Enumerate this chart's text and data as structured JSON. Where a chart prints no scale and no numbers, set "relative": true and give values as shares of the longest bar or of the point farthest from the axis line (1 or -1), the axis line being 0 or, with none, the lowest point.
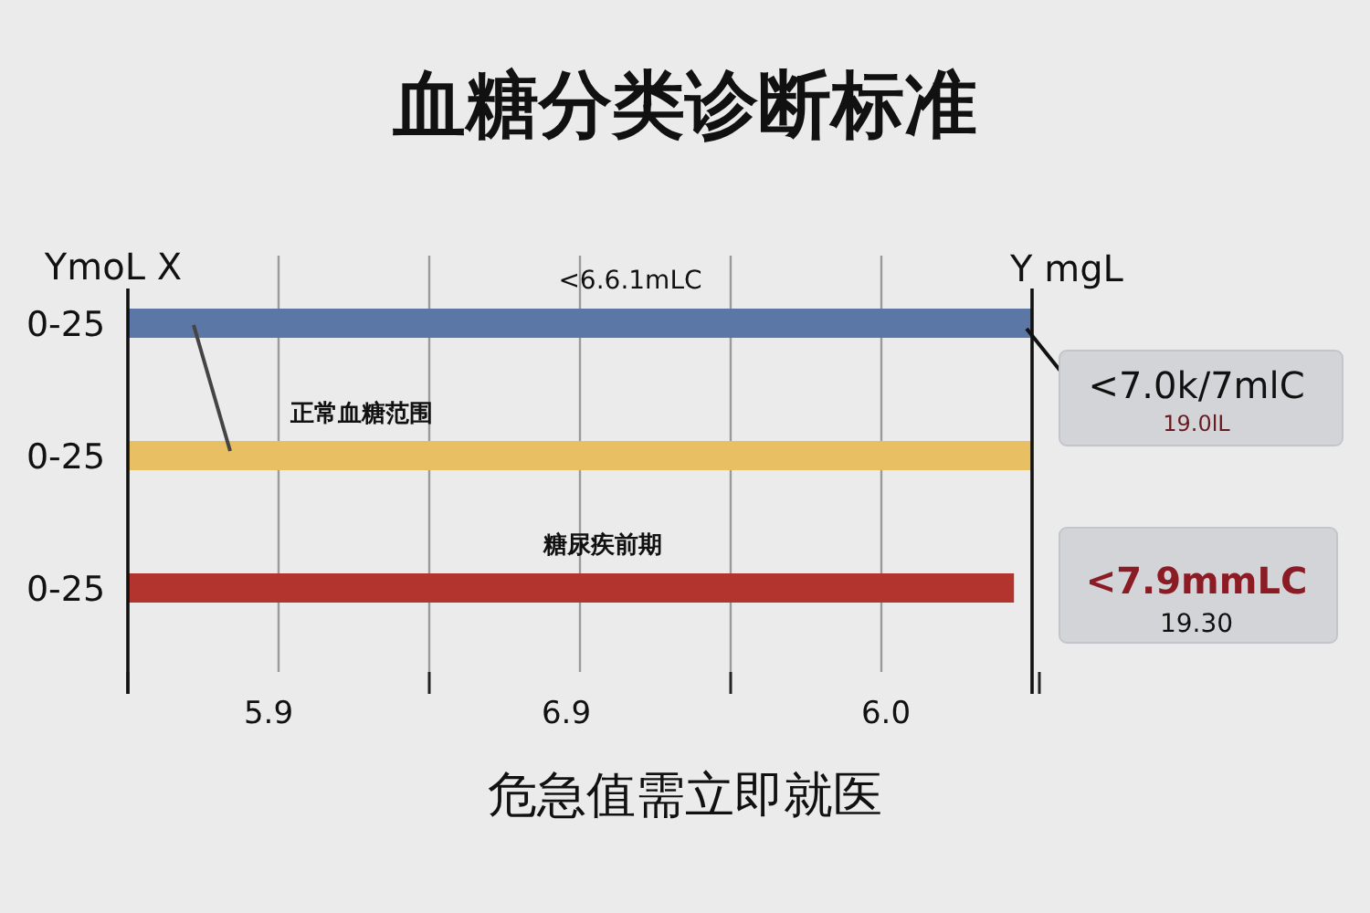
{
  "chart_data": {
    "type": "bar",
    "orientation": "horizontal",
    "relative": true,
    "title": "血糖分类诊断标准",
    "ylabel": "YmoL X",
    "y2label": "Y mgL",
    "xlabel": "危急值需立即就医",
    "categories": [
      "0-25",
      "0-25",
      "0-25"
    ],
    "values": [
      1,
      1,
      0.98
    ],
    "colors": [
      "#5b77a6",
      "#e9bf63",
      "#b3332f"
    ],
    "grid": "x",
    "annotations": [
      "<6.6.1mLC",
      "正常血糖范围",
      "糖尿疾前期",
      "<7.0k/7mlC",
      "19.0lL",
      "<7.9mmLC",
      "19.30",
      "5.9",
      "6.9",
      "6.0"
    ]
  }
}
